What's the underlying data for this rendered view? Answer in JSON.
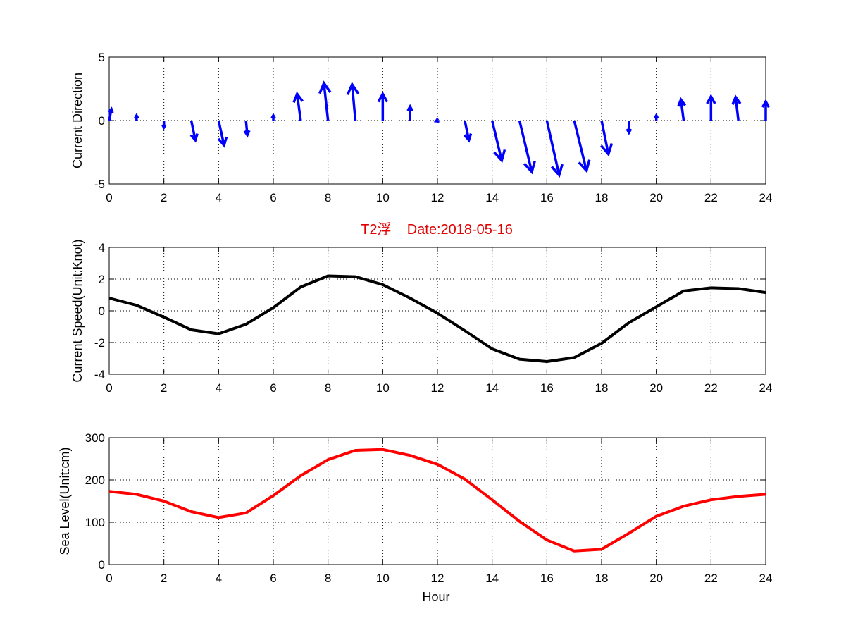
{
  "title": {
    "text": "T2浮    Date:2018-05-16",
    "color": "#e00000"
  },
  "chart_data": [
    {
      "type": "quiver",
      "name": "current-direction",
      "ylabel": "Current Direction",
      "xlabel": "",
      "xlim": [
        0,
        24
      ],
      "ylim": [
        -5,
        5
      ],
      "xticks": [
        0,
        2,
        4,
        6,
        8,
        10,
        12,
        14,
        16,
        18,
        20,
        22,
        24
      ],
      "yticks": [
        -5,
        0,
        5
      ],
      "grid": true,
      "color": "#0000ff",
      "x": [
        0,
        1,
        2,
        3,
        4,
        5,
        6,
        7,
        8,
        9,
        10,
        11,
        12,
        13,
        14,
        15,
        16,
        17,
        18,
        19,
        20,
        21,
        22,
        23,
        24
      ],
      "u": [
        0.08,
        0,
        0,
        0.15,
        0.2,
        0.05,
        0,
        -0.13,
        -0.15,
        -0.12,
        0,
        0,
        -0.05,
        0.15,
        0.35,
        0.45,
        0.45,
        0.45,
        0.25,
        0,
        0,
        -0.1,
        0,
        -0.1,
        0
      ],
      "v": [
        0.9,
        0.4,
        -0.55,
        -1.55,
        -1.95,
        -1.15,
        0.4,
        2.1,
        2.95,
        2.85,
        2.1,
        1.1,
        -0.05,
        -1.55,
        -3.15,
        -4.05,
        -4.3,
        -3.95,
        -2.65,
        -0.95,
        0.4,
        1.65,
        1.9,
        1.85,
        1.5
      ]
    },
    {
      "type": "line",
      "name": "current-speed",
      "ylabel": "Current Speed(Unit:Knot)",
      "xlabel": "",
      "xlim": [
        0,
        24
      ],
      "ylim": [
        -4,
        4
      ],
      "xticks": [
        0,
        2,
        4,
        6,
        8,
        10,
        12,
        14,
        16,
        18,
        20,
        22,
        24
      ],
      "yticks": [
        -4,
        -2,
        0,
        2,
        4
      ],
      "grid": true,
      "color": "#000000",
      "x": [
        0,
        1,
        2,
        3,
        4,
        5,
        6,
        7,
        8,
        9,
        10,
        11,
        12,
        13,
        14,
        15,
        16,
        17,
        18,
        19,
        20,
        21,
        22,
        23,
        24
      ],
      "y": [
        0.8,
        0.35,
        -0.4,
        -1.2,
        -1.45,
        -0.85,
        0.2,
        1.5,
        2.2,
        2.15,
        1.65,
        0.8,
        -0.15,
        -1.25,
        -2.4,
        -3.05,
        -3.2,
        -2.95,
        -2.05,
        -0.75,
        0.25,
        1.25,
        1.45,
        1.4,
        1.15
      ]
    },
    {
      "type": "line",
      "name": "sea-level",
      "ylabel": "Sea Level(Unit:cm)",
      "xlabel": "Hour",
      "xlim": [
        0,
        24
      ],
      "ylim": [
        0,
        300
      ],
      "xticks": [
        0,
        2,
        4,
        6,
        8,
        10,
        12,
        14,
        16,
        18,
        20,
        22,
        24
      ],
      "yticks": [
        0,
        100,
        200,
        300
      ],
      "grid": true,
      "color": "#ff0000",
      "x": [
        0,
        1,
        2,
        3,
        4,
        5,
        6,
        7,
        8,
        9,
        10,
        11,
        12,
        13,
        14,
        15,
        16,
        17,
        18,
        19,
        20,
        21,
        22,
        23,
        24
      ],
      "y": [
        173,
        166,
        150,
        125,
        111,
        122,
        163,
        210,
        248,
        270,
        272,
        258,
        237,
        202,
        153,
        102,
        58,
        32,
        36,
        74,
        114,
        138,
        153,
        161,
        166
      ]
    }
  ]
}
